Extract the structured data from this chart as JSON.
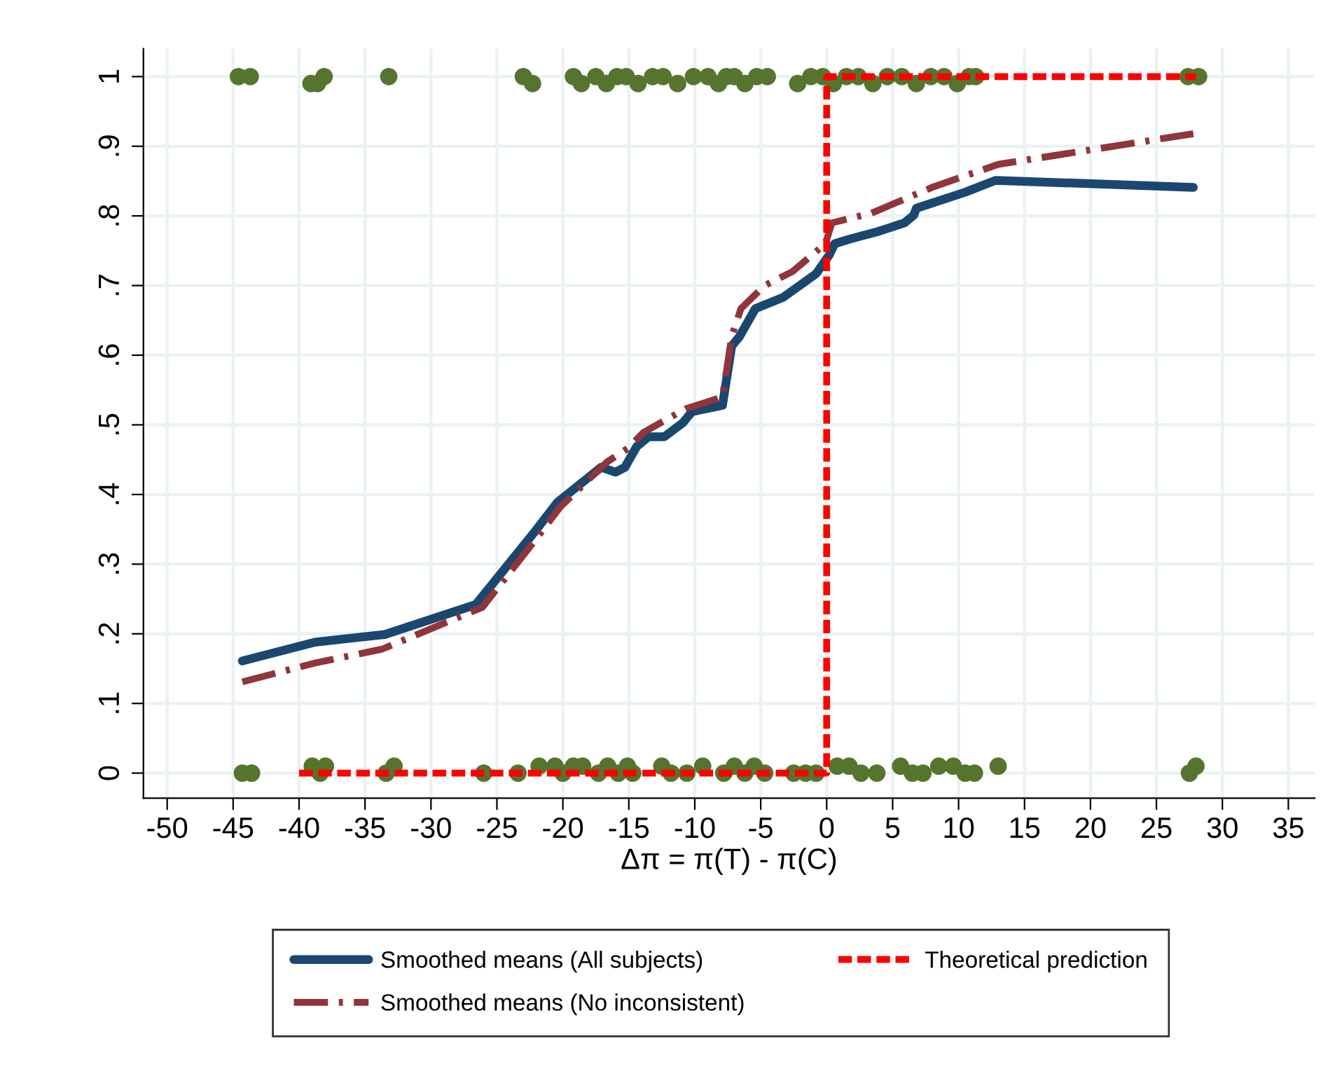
{
  "chart_data": {
    "type": "line",
    "xlabel": "Δπ = π(T) - π(C)",
    "xlim": [
      -51.8,
      37
    ],
    "xticks": [
      -50,
      -45,
      -40,
      -35,
      -30,
      -25,
      -20,
      -15,
      -10,
      -5,
      0,
      5,
      10,
      15,
      20,
      25,
      30,
      35
    ],
    "ylim": [
      -0.036,
      1.04
    ],
    "yticks": [
      0,
      {
        "value": 0.1,
        "label": ".1"
      },
      {
        "value": 0.2,
        "label": ".2"
      },
      {
        "value": 0.3,
        "label": ".3"
      },
      {
        "value": 0.4,
        "label": ".4"
      },
      {
        "value": 0.5,
        "label": ".5"
      },
      {
        "value": 0.6,
        "label": ".6"
      },
      {
        "value": 0.7,
        "label": ".7"
      },
      {
        "value": 0.8,
        "label": ".8"
      },
      {
        "value": 0.9,
        "label": ".9"
      },
      1
    ],
    "grid": true,
    "legend": "bottom",
    "series": [
      {
        "type": "scatter",
        "marker": "circle",
        "color": "#55752f",
        "x": [
          -44.6,
          -43.7,
          -39.1,
          -38.6,
          -38.1,
          -33.2,
          -23.0,
          -22.3,
          -19.2,
          -18.6,
          -17.5,
          -16.7,
          -15.9,
          -15.2,
          -14.3,
          -13.2,
          -12.4,
          -11.3,
          -10.1,
          -9.0,
          -8.2,
          -7.6,
          -7.0,
          -6.2,
          -5.3,
          -4.5,
          -2.2,
          -1.2,
          -0.3,
          0.5,
          1.5,
          2.4,
          3.5,
          4.6,
          5.7,
          6.8,
          7.9,
          8.9,
          9.9,
          10.8,
          11.3,
          27.4,
          28.2,
          -44.3,
          -43.6,
          -39.0,
          -38.4,
          -38.0,
          -33.4,
          -32.8,
          -26.0,
          -23.4,
          -21.8,
          -20.6,
          -20.0,
          -19.2,
          -18.5,
          -17.3,
          -16.6,
          -15.8,
          -15.1,
          -14.7,
          -12.5,
          -11.8,
          -10.6,
          -9.4,
          -7.8,
          -7.0,
          -6.2,
          -5.5,
          -4.7,
          -2.5,
          -1.6,
          -0.8,
          0.8,
          1.7,
          2.6,
          3.8,
          5.6,
          6.5,
          7.3,
          8.5,
          9.6,
          10.5,
          11.2,
          13.0,
          27.5,
          28.0
        ],
        "values": [
          1,
          1,
          0.99,
          0.99,
          1,
          1,
          1,
          0.99,
          1,
          0.99,
          1,
          0.99,
          1,
          1,
          0.99,
          1,
          1,
          0.99,
          1,
          1,
          0.99,
          1,
          1,
          0.99,
          1,
          1,
          0.99,
          1,
          1,
          0.99,
          1,
          1,
          0.99,
          1,
          1,
          0.99,
          1,
          1,
          0.99,
          1,
          1,
          1,
          1,
          0,
          0,
          0.01,
          0,
          0.01,
          0,
          0.01,
          0,
          0,
          0.01,
          0.01,
          0,
          0.01,
          0.01,
          0,
          0.01,
          0,
          0.01,
          0,
          0.01,
          0,
          0,
          0.01,
          0,
          0.01,
          0,
          0.01,
          0,
          0,
          0,
          0,
          0.01,
          0.01,
          0,
          0,
          0.01,
          0,
          0,
          0.01,
          0.01,
          0,
          0,
          0.01,
          0,
          0.01
        ]
      },
      {
        "name": "Smoothed means (All subjects)",
        "line_style": "solid",
        "color": "#1a476f",
        "x": [
          -44.3,
          -38.8,
          -33.5,
          -26.6,
          -22.2,
          -20.4,
          -17.1,
          -16.0,
          -15.3,
          -14.4,
          -13.5,
          -12.3,
          -10.9,
          -10.2,
          -7.9,
          -7.2,
          -6.6,
          -5.4,
          -3.3,
          -0.8,
          0.2,
          0.6,
          1.8,
          3.8,
          5.9,
          6.6,
          6.8,
          10.5,
          12.8,
          27.8
        ],
        "values": [
          0.161,
          0.188,
          0.199,
          0.242,
          0.345,
          0.389,
          0.439,
          0.432,
          0.439,
          0.469,
          0.483,
          0.483,
          0.503,
          0.519,
          0.528,
          0.613,
          0.627,
          0.667,
          0.683,
          0.717,
          0.744,
          0.76,
          0.767,
          0.777,
          0.79,
          0.801,
          0.811,
          0.834,
          0.851,
          0.841
        ]
      },
      {
        "name": "Smoothed means (No inconsistent)",
        "line_style": "dashdot",
        "color": "#90353b",
        "x": [
          -44.3,
          -38.8,
          -33.7,
          -26.1,
          -22.2,
          -20.2,
          -16.7,
          -15.1,
          -13.9,
          -10.7,
          -7.9,
          -7.2,
          -6.5,
          -4.7,
          -2.6,
          -0.1,
          0.4,
          3.4,
          8.0,
          13.0,
          27.8
        ],
        "values": [
          0.131,
          0.158,
          0.178,
          0.238,
          0.332,
          0.382,
          0.446,
          0.466,
          0.489,
          0.523,
          0.54,
          0.627,
          0.667,
          0.7,
          0.72,
          0.76,
          0.79,
          0.804,
          0.841,
          0.874,
          0.918
        ]
      },
      {
        "name": "Theoretical prediction",
        "line_style": "dashed",
        "color": "#ff0000",
        "x": [
          -40,
          0,
          0,
          28
        ],
        "values": [
          0,
          0,
          1,
          1
        ]
      }
    ]
  }
}
